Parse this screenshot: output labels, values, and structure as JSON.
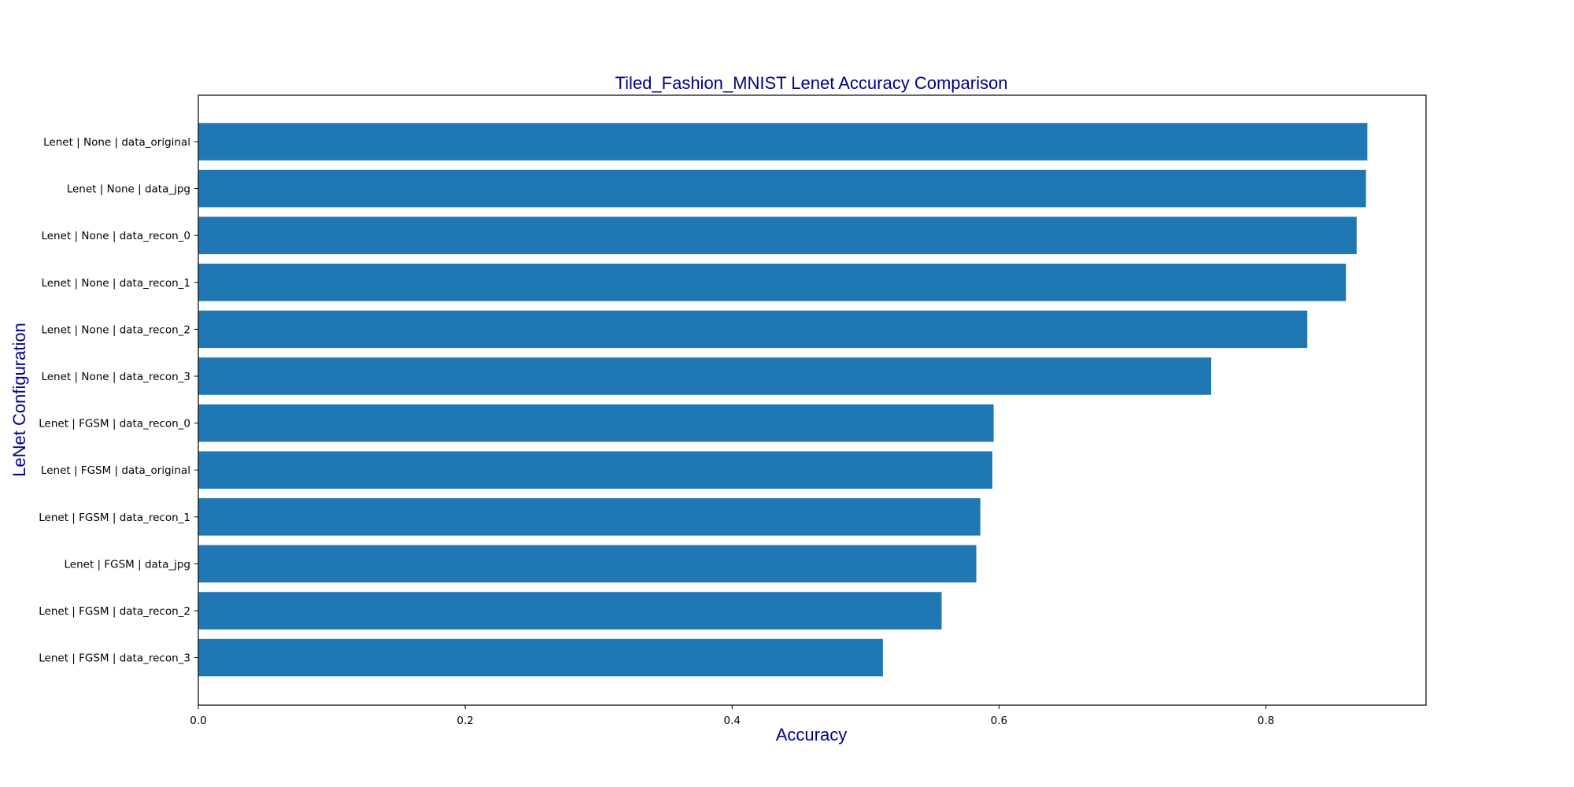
{
  "chart_data": {
    "type": "bar",
    "orientation": "horizontal",
    "title": "Tiled_Fashion_MNIST Lenet Accuracy Comparison",
    "xlabel": "Accuracy",
    "ylabel": "LeNet Configuration",
    "xlim": [
      0,
      0.92
    ],
    "xticks": [
      0.0,
      0.2,
      0.4,
      0.6,
      0.8
    ],
    "xtick_labels": [
      "0.0",
      "0.2",
      "0.4",
      "0.6",
      "0.8"
    ],
    "grid": false,
    "bar_color": "#1f77b4",
    "categories": [
      "Lenet | None | data_original",
      "Lenet | None | data_jpg",
      "Lenet | None | data_recon_0",
      "Lenet | None | data_recon_1",
      "Lenet | None | data_recon_2",
      "Lenet | None | data_recon_3",
      "Lenet | FGSM | data_recon_0",
      "Lenet | FGSM | data_original",
      "Lenet | FGSM | data_recon_1",
      "Lenet | FGSM | data_jpg",
      "Lenet | FGSM | data_recon_2",
      "Lenet | FGSM | data_recon_3"
    ],
    "values": [
      0.876,
      0.875,
      0.868,
      0.86,
      0.831,
      0.759,
      0.596,
      0.595,
      0.586,
      0.583,
      0.557,
      0.513
    ]
  }
}
